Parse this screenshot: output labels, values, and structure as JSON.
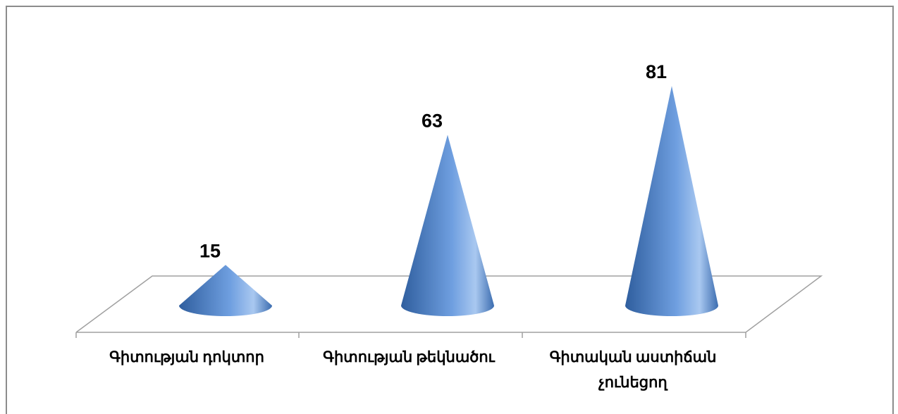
{
  "chart_data": {
    "type": "bar",
    "shape": "cone",
    "categories": [
      [
        "Գիտության դոկտոր"
      ],
      [
        "Գիտության թեկնածու"
      ],
      [
        "Գիտական աստիճան",
        "չունեցող"
      ]
    ],
    "values": [
      15,
      63,
      81
    ],
    "data_labels": [
      "15",
      "63",
      "81"
    ],
    "title": "",
    "xlabel": "",
    "ylabel": "",
    "ylim": [
      0,
      90
    ],
    "grid": false,
    "legend": "none",
    "colors": {
      "cone_dark": "#2f5e9e",
      "cone_mid": "#5b8fd6",
      "cone_light": "#a9c8f0",
      "floor": "#a0a0a0"
    }
  }
}
